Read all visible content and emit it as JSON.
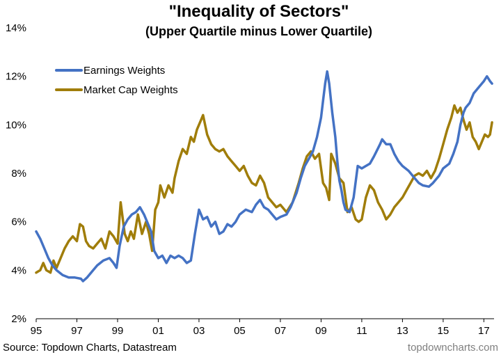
{
  "chart_data": {
    "type": "line",
    "title": "\"Inequality of Sectors\"",
    "subtitle": "(Upper Quartile minus Lower Quartile)",
    "xlabel": "",
    "ylabel": "",
    "xlim": [
      1995,
      2017.5
    ],
    "ylim": [
      2,
      14
    ],
    "x_ticks": [
      "95",
      "97",
      "99",
      "01",
      "03",
      "05",
      "07",
      "09",
      "11",
      "13",
      "15",
      "17"
    ],
    "y_ticks": [
      "2%",
      "4%",
      "6%",
      "8%",
      "10%",
      "12%",
      "14%"
    ],
    "grid": false,
    "legend_position": "top-left",
    "series": [
      {
        "name": "Earnings Weights",
        "color": "#4472c4",
        "points": [
          [
            1995.0,
            5.6
          ],
          [
            1995.2,
            5.3
          ],
          [
            1995.4,
            4.9
          ],
          [
            1995.6,
            4.5
          ],
          [
            1995.8,
            4.2
          ],
          [
            1996.0,
            4.0
          ],
          [
            1996.3,
            3.8
          ],
          [
            1996.6,
            3.7
          ],
          [
            1996.9,
            3.7
          ],
          [
            1997.2,
            3.65
          ],
          [
            1997.3,
            3.55
          ],
          [
            1997.5,
            3.7
          ],
          [
            1997.8,
            4.0
          ],
          [
            1998.0,
            4.2
          ],
          [
            1998.3,
            4.4
          ],
          [
            1998.6,
            4.5
          ],
          [
            1998.8,
            4.3
          ],
          [
            1998.95,
            4.1
          ],
          [
            1999.1,
            5.0
          ],
          [
            1999.3,
            5.8
          ],
          [
            1999.5,
            6.1
          ],
          [
            1999.7,
            6.3
          ],
          [
            1999.9,
            6.4
          ],
          [
            2000.1,
            6.6
          ],
          [
            2000.3,
            6.3
          ],
          [
            2000.5,
            5.9
          ],
          [
            2000.65,
            5.6
          ],
          [
            2000.8,
            4.8
          ],
          [
            2001.0,
            4.5
          ],
          [
            2001.2,
            4.6
          ],
          [
            2001.4,
            4.3
          ],
          [
            2001.6,
            4.6
          ],
          [
            2001.8,
            4.5
          ],
          [
            2002.0,
            4.6
          ],
          [
            2002.2,
            4.5
          ],
          [
            2002.4,
            4.3
          ],
          [
            2002.6,
            4.4
          ],
          [
            2002.8,
            5.5
          ],
          [
            2003.0,
            6.5
          ],
          [
            2003.2,
            6.1
          ],
          [
            2003.4,
            6.2
          ],
          [
            2003.6,
            5.8
          ],
          [
            2003.8,
            6.0
          ],
          [
            2004.0,
            5.5
          ],
          [
            2004.2,
            5.6
          ],
          [
            2004.4,
            5.9
          ],
          [
            2004.6,
            5.8
          ],
          [
            2004.8,
            6.0
          ],
          [
            2005.0,
            6.3
          ],
          [
            2005.3,
            6.5
          ],
          [
            2005.6,
            6.4
          ],
          [
            2005.8,
            6.7
          ],
          [
            2006.0,
            6.9
          ],
          [
            2006.2,
            6.6
          ],
          [
            2006.4,
            6.5
          ],
          [
            2006.6,
            6.3
          ],
          [
            2006.8,
            6.1
          ],
          [
            2007.0,
            6.2
          ],
          [
            2007.3,
            6.3
          ],
          [
            2007.5,
            6.6
          ],
          [
            2007.8,
            7.2
          ],
          [
            2008.0,
            7.8
          ],
          [
            2008.2,
            8.3
          ],
          [
            2008.4,
            8.6
          ],
          [
            2008.6,
            8.9
          ],
          [
            2008.8,
            9.5
          ],
          [
            2009.0,
            10.3
          ],
          [
            2009.1,
            11.0
          ],
          [
            2009.2,
            11.7
          ],
          [
            2009.3,
            12.2
          ],
          [
            2009.4,
            11.7
          ],
          [
            2009.55,
            10.5
          ],
          [
            2009.7,
            9.5
          ],
          [
            2009.8,
            8.5
          ],
          [
            2009.9,
            7.7
          ],
          [
            2010.0,
            7.3
          ],
          [
            2010.1,
            6.8
          ],
          [
            2010.2,
            6.5
          ],
          [
            2010.4,
            6.4
          ],
          [
            2010.6,
            7.0
          ],
          [
            2010.8,
            8.3
          ],
          [
            2011.0,
            8.2
          ],
          [
            2011.2,
            8.3
          ],
          [
            2011.4,
            8.4
          ],
          [
            2011.6,
            8.7
          ],
          [
            2011.9,
            9.2
          ],
          [
            2012.0,
            9.4
          ],
          [
            2012.2,
            9.2
          ],
          [
            2012.4,
            9.2
          ],
          [
            2012.6,
            8.8
          ],
          [
            2012.8,
            8.5
          ],
          [
            2013.0,
            8.3
          ],
          [
            2013.3,
            8.1
          ],
          [
            2013.6,
            7.8
          ],
          [
            2013.8,
            7.6
          ],
          [
            2014.0,
            7.5
          ],
          [
            2014.3,
            7.45
          ],
          [
            2014.5,
            7.6
          ],
          [
            2014.8,
            7.9
          ],
          [
            2015.0,
            8.2
          ],
          [
            2015.3,
            8.4
          ],
          [
            2015.5,
            8.8
          ],
          [
            2015.7,
            9.3
          ],
          [
            2015.85,
            10.0
          ],
          [
            2016.0,
            10.5
          ],
          [
            2016.1,
            10.7
          ],
          [
            2016.3,
            10.9
          ],
          [
            2016.5,
            11.3
          ],
          [
            2016.8,
            11.6
          ],
          [
            2017.0,
            11.8
          ],
          [
            2017.15,
            12.0
          ],
          [
            2017.3,
            11.8
          ],
          [
            2017.4,
            11.7
          ]
        ]
      },
      {
        "name": "Market Cap Weights",
        "color": "#a07d0a",
        "points": [
          [
            1995.0,
            3.9
          ],
          [
            1995.2,
            4.0
          ],
          [
            1995.35,
            4.3
          ],
          [
            1995.5,
            4.0
          ],
          [
            1995.7,
            3.9
          ],
          [
            1995.85,
            4.4
          ],
          [
            1996.0,
            4.1
          ],
          [
            1996.2,
            4.5
          ],
          [
            1996.4,
            4.9
          ],
          [
            1996.6,
            5.2
          ],
          [
            1996.8,
            5.4
          ],
          [
            1997.0,
            5.2
          ],
          [
            1997.15,
            5.9
          ],
          [
            1997.3,
            5.8
          ],
          [
            1997.45,
            5.2
          ],
          [
            1997.6,
            5.0
          ],
          [
            1997.8,
            4.9
          ],
          [
            1998.0,
            5.1
          ],
          [
            1998.2,
            5.3
          ],
          [
            1998.4,
            4.9
          ],
          [
            1998.6,
            5.6
          ],
          [
            1998.8,
            5.4
          ],
          [
            1999.0,
            5.1
          ],
          [
            1999.15,
            6.8
          ],
          [
            1999.35,
            5.5
          ],
          [
            1999.5,
            5.2
          ],
          [
            1999.65,
            5.6
          ],
          [
            1999.8,
            5.3
          ],
          [
            2000.0,
            6.3
          ],
          [
            2000.2,
            5.5
          ],
          [
            2000.4,
            6.0
          ],
          [
            2000.55,
            5.5
          ],
          [
            2000.7,
            4.8
          ],
          [
            2000.85,
            6.5
          ],
          [
            2001.0,
            6.8
          ],
          [
            2001.1,
            7.5
          ],
          [
            2001.3,
            7.0
          ],
          [
            2001.5,
            7.5
          ],
          [
            2001.7,
            7.2
          ],
          [
            2001.8,
            7.8
          ],
          [
            2002.0,
            8.5
          ],
          [
            2002.2,
            9.0
          ],
          [
            2002.4,
            8.8
          ],
          [
            2002.6,
            9.5
          ],
          [
            2002.75,
            9.3
          ],
          [
            2002.9,
            9.8
          ],
          [
            2003.1,
            10.2
          ],
          [
            2003.2,
            10.4
          ],
          [
            2003.4,
            9.6
          ],
          [
            2003.6,
            9.2
          ],
          [
            2003.8,
            9.0
          ],
          [
            2004.0,
            8.9
          ],
          [
            2004.2,
            9.0
          ],
          [
            2004.4,
            8.7
          ],
          [
            2004.6,
            8.5
          ],
          [
            2004.8,
            8.3
          ],
          [
            2005.0,
            8.1
          ],
          [
            2005.2,
            8.3
          ],
          [
            2005.4,
            7.9
          ],
          [
            2005.6,
            7.6
          ],
          [
            2005.8,
            7.5
          ],
          [
            2006.0,
            7.9
          ],
          [
            2006.2,
            7.6
          ],
          [
            2006.4,
            7.0
          ],
          [
            2006.6,
            6.8
          ],
          [
            2006.8,
            6.6
          ],
          [
            2007.0,
            6.7
          ],
          [
            2007.3,
            6.4
          ],
          [
            2007.6,
            6.8
          ],
          [
            2007.9,
            7.6
          ],
          [
            2008.1,
            8.2
          ],
          [
            2008.3,
            8.7
          ],
          [
            2008.5,
            8.9
          ],
          [
            2008.7,
            8.6
          ],
          [
            2008.9,
            8.8
          ],
          [
            2009.1,
            7.6
          ],
          [
            2009.25,
            7.4
          ],
          [
            2009.4,
            6.9
          ],
          [
            2009.5,
            8.8
          ],
          [
            2009.7,
            8.4
          ],
          [
            2009.9,
            7.8
          ],
          [
            2010.1,
            7.6
          ],
          [
            2010.3,
            6.4
          ],
          [
            2010.5,
            6.6
          ],
          [
            2010.7,
            6.1
          ],
          [
            2010.85,
            6.0
          ],
          [
            2011.0,
            6.1
          ],
          [
            2011.2,
            7.0
          ],
          [
            2011.4,
            7.5
          ],
          [
            2011.6,
            7.3
          ],
          [
            2011.8,
            6.8
          ],
          [
            2012.0,
            6.5
          ],
          [
            2012.2,
            6.1
          ],
          [
            2012.4,
            6.3
          ],
          [
            2012.6,
            6.6
          ],
          [
            2012.8,
            6.8
          ],
          [
            2013.0,
            7.0
          ],
          [
            2013.2,
            7.3
          ],
          [
            2013.4,
            7.6
          ],
          [
            2013.6,
            7.9
          ],
          [
            2013.8,
            8.0
          ],
          [
            2014.0,
            7.9
          ],
          [
            2014.2,
            8.1
          ],
          [
            2014.4,
            7.8
          ],
          [
            2014.6,
            8.1
          ],
          [
            2014.8,
            8.6
          ],
          [
            2015.0,
            9.2
          ],
          [
            2015.2,
            9.8
          ],
          [
            2015.4,
            10.3
          ],
          [
            2015.55,
            10.8
          ],
          [
            2015.7,
            10.5
          ],
          [
            2015.85,
            10.7
          ],
          [
            2016.0,
            10.2
          ],
          [
            2016.15,
            9.8
          ],
          [
            2016.3,
            10.1
          ],
          [
            2016.45,
            9.5
          ],
          [
            2016.6,
            9.3
          ],
          [
            2016.75,
            9.0
          ],
          [
            2016.9,
            9.3
          ],
          [
            2017.05,
            9.6
          ],
          [
            2017.2,
            9.5
          ],
          [
            2017.3,
            9.6
          ],
          [
            2017.4,
            10.1
          ]
        ]
      }
    ]
  },
  "footer": {
    "source": "Source: Topdown Charts, Datastream",
    "watermark": "topdowncharts.com"
  }
}
